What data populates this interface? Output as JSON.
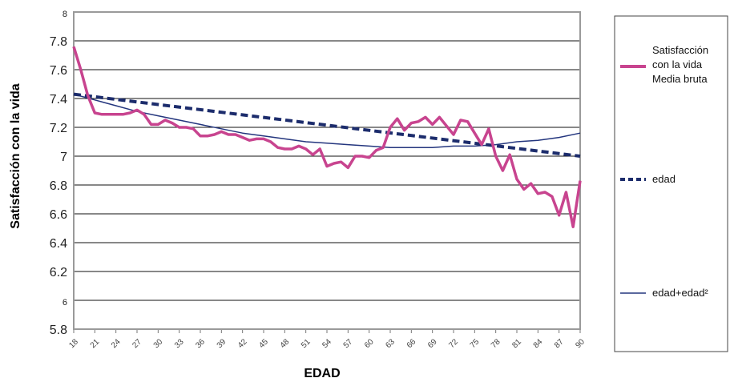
{
  "chart_data": {
    "type": "line",
    "xlabel": "EDAD",
    "ylabel": "Satisfacción con la vida",
    "ylim": [
      5.8,
      8
    ],
    "xlim": [
      18,
      90
    ],
    "yticks": [
      "5.8",
      "6",
      "6.2",
      "6.4",
      "6.6",
      "6.8",
      "7",
      "7.2",
      "7.4",
      "7.6",
      "7.8",
      "8"
    ],
    "xticks": [
      "18",
      "21",
      "24",
      "27",
      "30",
      "33",
      "36",
      "39",
      "42",
      "45",
      "48",
      "51",
      "54",
      "57",
      "60",
      "63",
      "66",
      "69",
      "72",
      "75",
      "78",
      "81",
      "84",
      "87",
      "90"
    ],
    "grid": true,
    "legend": "right",
    "series": [
      {
        "name_lines": [
          "Satisfacción",
          "con la vida",
          "Media bruta"
        ],
        "color": "#c8448f",
        "style": "solid-thick",
        "x": [
          18,
          19,
          20,
          21,
          22,
          23,
          24,
          25,
          26,
          27,
          28,
          29,
          30,
          31,
          32,
          33,
          34,
          35,
          36,
          37,
          38,
          39,
          40,
          41,
          42,
          43,
          44,
          45,
          46,
          47,
          48,
          49,
          50,
          51,
          52,
          53,
          54,
          55,
          56,
          57,
          58,
          59,
          60,
          61,
          62,
          63,
          64,
          65,
          66,
          67,
          68,
          69,
          70,
          71,
          72,
          73,
          74,
          75,
          76,
          77,
          78,
          79,
          80,
          81,
          82,
          83,
          84,
          85,
          86,
          87,
          88,
          89,
          90
        ],
        "y": [
          7.76,
          7.6,
          7.42,
          7.3,
          7.29,
          7.29,
          7.29,
          7.29,
          7.3,
          7.32,
          7.29,
          7.22,
          7.22,
          7.25,
          7.23,
          7.2,
          7.2,
          7.19,
          7.14,
          7.14,
          7.15,
          7.17,
          7.15,
          7.15,
          7.13,
          7.11,
          7.12,
          7.12,
          7.1,
          7.06,
          7.05,
          7.05,
          7.07,
          7.05,
          7.01,
          7.05,
          6.93,
          6.95,
          6.96,
          6.92,
          7.0,
          7.0,
          6.99,
          7.04,
          7.06,
          7.2,
          7.26,
          7.18,
          7.23,
          7.24,
          7.27,
          7.22,
          7.27,
          7.21,
          7.15,
          7.25,
          7.24,
          7.16,
          7.08,
          7.19,
          7.0,
          6.9,
          7.01,
          6.84,
          6.77,
          6.81,
          6.74,
          6.75,
          6.72,
          6.59,
          6.75,
          6.51,
          6.83
        ]
      },
      {
        "name": "edad",
        "color": "#1c2c6c",
        "style": "dashed",
        "x": [
          18,
          90
        ],
        "y": [
          7.43,
          7.0
        ]
      },
      {
        "name": "edad+edad²",
        "color": "#24367e",
        "style": "solid-thin",
        "x": [
          18,
          21,
          24,
          27,
          30,
          33,
          36,
          39,
          42,
          45,
          48,
          51,
          54,
          57,
          60,
          63,
          66,
          69,
          72,
          75,
          78,
          81,
          84,
          87,
          90
        ],
        "y": [
          7.43,
          7.39,
          7.35,
          7.31,
          7.28,
          7.25,
          7.22,
          7.19,
          7.16,
          7.14,
          7.12,
          7.1,
          7.09,
          7.08,
          7.07,
          7.06,
          7.06,
          7.06,
          7.07,
          7.07,
          7.08,
          7.1,
          7.11,
          7.13,
          7.16
        ]
      }
    ]
  }
}
